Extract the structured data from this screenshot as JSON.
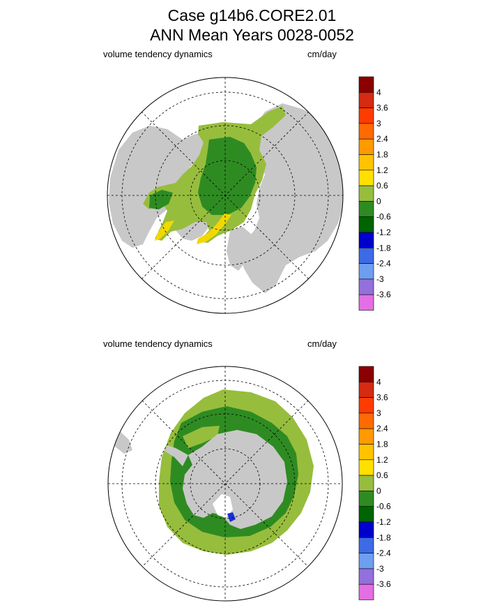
{
  "header": {
    "title_line1": "Case g14b6.CORE2.01",
    "title_line2": "ANN Mean    Years 0028-0052"
  },
  "colors": {
    "land": "#c8c8c8",
    "green_dark": "#2e8b22",
    "green_light": "#97bd3d",
    "yellow": "#f2d800",
    "orange_yellow": "#ffc300",
    "blue": "#1a2fd6"
  },
  "colorbar": {
    "colors": [
      "#8b0000",
      "#d42b12",
      "#ff3c00",
      "#ff6a00",
      "#ff9a00",
      "#ffc300",
      "#ffe000",
      "#97bd3d",
      "#2e8b22",
      "#006400",
      "#0000cd",
      "#3d6ae6",
      "#6e9ef0",
      "#9370db",
      "#e46ee4"
    ],
    "labels": [
      "4",
      "3.6",
      "3",
      "2.4",
      "1.8",
      "1.2",
      "0.6",
      "0",
      "-0.6",
      "-1.2",
      "-1.8",
      "-2.4",
      "-3",
      "-3.6"
    ]
  },
  "chart_data": [
    {
      "type": "heatmap",
      "hemisphere": "north",
      "projection": "polar stereographic",
      "field_label": "volume tendency dynamics",
      "units": "cm/day",
      "levels": [
        -3.6,
        -3,
        -2.4,
        -1.8,
        -1.2,
        -0.6,
        0,
        0.6,
        1.2,
        1.8,
        2.4,
        3,
        3.6,
        4
      ],
      "dominant_values": "Central Arctic mostly -0.6 to 0; ice edge 0 to 0.6; East Greenland / Fram Strait 0.6 to 1.8"
    },
    {
      "type": "heatmap",
      "hemisphere": "south",
      "projection": "polar stereographic",
      "field_label": "volume tendency dynamics",
      "units": "cm/day",
      "levels": [
        -3.6,
        -3,
        -2.4,
        -1.8,
        -1.2,
        -0.6,
        0,
        0.6,
        1.2,
        1.8,
        2.4,
        3,
        3.6,
        4
      ],
      "dominant_values": "Coastal band -0.6 to 0; outer pack 0 to 0.6; small area near Ross Sea -1.2 to -1.8"
    }
  ]
}
